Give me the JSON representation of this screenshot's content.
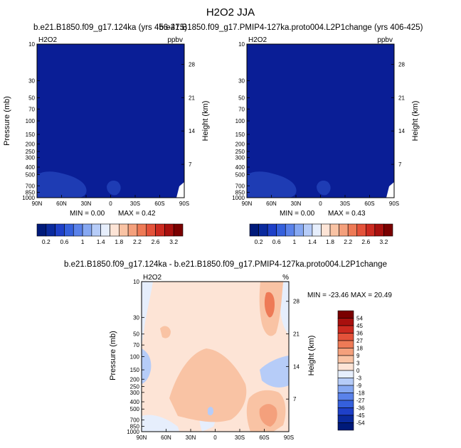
{
  "page": {
    "title": "H2O2 JJA"
  },
  "colors": {
    "deep_blue": "#0a1e96",
    "mid_blue": "#1e3cb4",
    "light_blue": "#2846c8"
  },
  "palette_top": [
    "#001a7a",
    "#0a2a9e",
    "#1e40c8",
    "#3560dc",
    "#5a82ea",
    "#86a8f2",
    "#b6ccf8",
    "#e6eefc",
    "#fde4d6",
    "#f9c3a4",
    "#f4a07c",
    "#ee7a56",
    "#e4523a",
    "#cc2a20",
    "#a8100e",
    "#7a0000"
  ],
  "palette_diff": [
    "#001a7a",
    "#0a2a9e",
    "#1e40c8",
    "#3560dc",
    "#5a82ea",
    "#86a8f2",
    "#b6ccf8",
    "#e6eefc",
    "#fde4d6",
    "#f9c3a4",
    "#f4a07c",
    "#ee7a56",
    "#e4523a",
    "#cc2a20",
    "#a8100e",
    "#7a0000"
  ],
  "chart_data": [
    {
      "type": "heatmap",
      "title": "b.e21.B1850.f09_g17.124ka (yrs 456-475)",
      "left_label": "H2O2",
      "right_label": "ppbv",
      "xlabel": "",
      "ylabel": "Pressure (mb)",
      "ylabel_right": "Height (km)",
      "x_ticks": [
        "90N",
        "60N",
        "30N",
        "0",
        "30S",
        "60S",
        "90S"
      ],
      "y_ticks": [
        "10",
        "30",
        "50",
        "70",
        "100",
        "150",
        "200",
        "250",
        "300",
        "400",
        "500",
        "700",
        "850",
        "1000"
      ],
      "y_ticks_right": [
        "28",
        "21",
        "14",
        "7"
      ],
      "ylim": [
        1000,
        10
      ],
      "yscale": "log",
      "stats": {
        "min": "0.00",
        "max": "0.42"
      },
      "min_text": "MIN =   0.00",
      "max_text": "MAX =   0.42",
      "colorbar_labels": [
        "0.2",
        "0.6",
        "1",
        "1.4",
        "1.8",
        "2.2",
        "2.6",
        "3.2"
      ],
      "colorbar_levels": [
        0,
        0.2,
        0.4,
        0.6,
        0.8,
        1,
        1.2,
        1.4,
        1.6,
        1.8,
        2,
        2.2,
        2.4,
        2.6,
        2.8,
        3.2
      ]
    },
    {
      "type": "heatmap",
      "title": "b.e21.B1850.f09_g17.PMIP4-127ka.proto004.L2P1change (yrs 406-425)",
      "left_label": "H2O2",
      "right_label": "ppbv",
      "xlabel": "",
      "ylabel": "",
      "ylabel_right": "Height (km)",
      "x_ticks": [
        "90N",
        "60N",
        "30N",
        "0",
        "30S",
        "60S",
        "90S"
      ],
      "y_ticks": [
        "10",
        "30",
        "50",
        "70",
        "100",
        "150",
        "200",
        "250",
        "300",
        "400",
        "500",
        "700",
        "850",
        "1000"
      ],
      "y_ticks_right": [
        "28",
        "21",
        "14",
        "7"
      ],
      "ylim": [
        1000,
        10
      ],
      "yscale": "log",
      "stats": {
        "min": "0.00",
        "max": "0.43"
      },
      "min_text": "MIN =   0.00",
      "max_text": "MAX =   0.43",
      "colorbar_labels": [
        "0.2",
        "0.6",
        "1",
        "1.4",
        "1.8",
        "2.2",
        "2.6",
        "3.2"
      ],
      "colorbar_levels": [
        0,
        0.2,
        0.4,
        0.6,
        0.8,
        1,
        1.2,
        1.4,
        1.6,
        1.8,
        2,
        2.2,
        2.4,
        2.6,
        2.8,
        3.2
      ]
    },
    {
      "type": "heatmap",
      "title": "b.e21.B1850.f09_g17.124ka - b.e21.B1850.f09_g17.PMIP4-127ka.proto004.L2P1change",
      "left_label": "H2O2",
      "right_label": "%",
      "xlabel": "",
      "ylabel": "Pressure (mb)",
      "ylabel_right": "Height (km)",
      "x_ticks": [
        "90N",
        "60N",
        "30N",
        "0",
        "30S",
        "60S",
        "90S"
      ],
      "y_ticks": [
        "10",
        "30",
        "50",
        "70",
        "100",
        "150",
        "200",
        "250",
        "300",
        "400",
        "500",
        "700",
        "850",
        "1000"
      ],
      "y_ticks_right": [
        "28",
        "21",
        "14",
        "7"
      ],
      "ylim": [
        1000,
        10
      ],
      "yscale": "log",
      "stats": {
        "min": "-23.46",
        "max": "20.49"
      },
      "minmax_text": "MIN = -23.46   MAX = 20.49",
      "colorbar_labels": [
        "54",
        "45",
        "36",
        "27",
        "18",
        "9",
        "3",
        "0",
        "-3",
        "-9",
        "-18",
        "-27",
        "-36",
        "-45",
        "-54"
      ],
      "colorbar_levels": [
        -54,
        -45,
        -36,
        -27,
        -18,
        -9,
        -3,
        0,
        3,
        9,
        18,
        27,
        36,
        45,
        54
      ]
    }
  ]
}
